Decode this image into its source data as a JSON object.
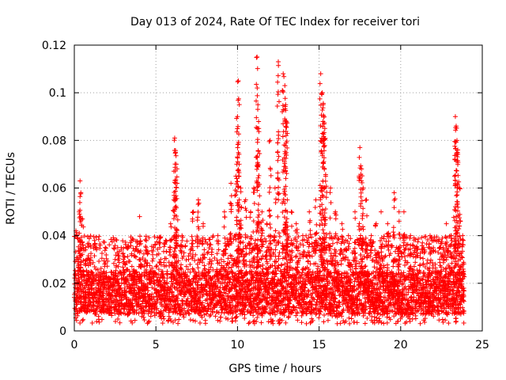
{
  "chart_data": {
    "type": "scatter",
    "title": "Day 013 of 2024, Rate Of TEC Index for receiver tori",
    "xlabel": "GPS time / hours",
    "ylabel": "ROTI / TECUs",
    "xlim": [
      0,
      25
    ],
    "ylim": [
      0,
      0.12
    ],
    "x_ticks": [
      0,
      5,
      10,
      15,
      20,
      25
    ],
    "x_tick_labels": [
      "0",
      "5",
      "10",
      "15",
      "20",
      "25"
    ],
    "y_ticks": [
      0,
      0.02,
      0.04,
      0.06,
      0.08,
      0.1,
      0.12
    ],
    "y_tick_labels": [
      "0",
      "0.02",
      "0.04",
      "0.06",
      "0.08",
      "0.1",
      "0.12"
    ],
    "grid": true,
    "marker": "+",
    "color": "#ff0000",
    "series": [
      {
        "name": "ROTI",
        "x": [
          0.1,
          0.15,
          0.2,
          0.3,
          0.35,
          0.4,
          0.5,
          0.7,
          0.9,
          1.0,
          1.2,
          1.5,
          1.8,
          2.2,
          2.5,
          3.0,
          3.3,
          3.6,
          4.0,
          4.4,
          4.8,
          5.0,
          5.3,
          5.6,
          5.9,
          6.1,
          6.15,
          6.2,
          6.25,
          6.3,
          6.6,
          7.0,
          7.3,
          7.6,
          7.9,
          8.3,
          8.8,
          9.2,
          9.6,
          9.9,
          10.0,
          10.05,
          10.1,
          10.2,
          10.5,
          10.8,
          11.0,
          11.2,
          11.25,
          11.3,
          11.5,
          11.8,
          12.0,
          12.3,
          12.5,
          12.8,
          12.9,
          12.95,
          13.0,
          13.05,
          13.3,
          13.6,
          14.0,
          14.4,
          14.8,
          15.1,
          15.2,
          15.25,
          15.3,
          15.35,
          15.4,
          15.7,
          16.0,
          16.4,
          16.8,
          17.2,
          17.5,
          17.6,
          17.7,
          17.9,
          18.2,
          18.5,
          18.8,
          19.2,
          19.6,
          19.9,
          20.2,
          20.6,
          21.0,
          21.4,
          21.8,
          22.1,
          22.4,
          22.8,
          23.1,
          23.3,
          23.35,
          23.4,
          23.45,
          23.5,
          23.6,
          23.8
        ],
        "y": [
          0.042,
          0.03,
          0.025,
          0.05,
          0.063,
          0.058,
          0.047,
          0.035,
          0.03,
          0.028,
          0.022,
          0.018,
          0.025,
          0.02,
          0.03,
          0.03,
          0.035,
          0.025,
          0.048,
          0.035,
          0.032,
          0.027,
          0.03,
          0.038,
          0.045,
          0.055,
          0.081,
          0.075,
          0.07,
          0.062,
          0.04,
          0.03,
          0.05,
          0.055,
          0.045,
          0.03,
          0.04,
          0.05,
          0.062,
          0.065,
          0.09,
          0.105,
          0.07,
          0.06,
          0.055,
          0.05,
          0.06,
          0.115,
          0.095,
          0.085,
          0.05,
          0.045,
          0.08,
          0.06,
          0.113,
          0.108,
          0.103,
          0.095,
          0.088,
          0.055,
          0.05,
          0.045,
          0.04,
          0.05,
          0.055,
          0.108,
          0.1,
          0.095,
          0.09,
          0.085,
          0.065,
          0.06,
          0.05,
          0.045,
          0.04,
          0.05,
          0.077,
          0.068,
          0.06,
          0.055,
          0.04,
          0.045,
          0.05,
          0.045,
          0.058,
          0.05,
          0.05,
          0.04,
          0.035,
          0.035,
          0.04,
          0.025,
          0.035,
          0.045,
          0.04,
          0.065,
          0.09,
          0.086,
          0.08,
          0.076,
          0.06,
          0.04
        ]
      }
    ],
    "dense_band": {
      "x_range": [
        0,
        23.9
      ],
      "typical_low": 0.007,
      "typical_high": 0.025,
      "min": 0.003
    }
  }
}
